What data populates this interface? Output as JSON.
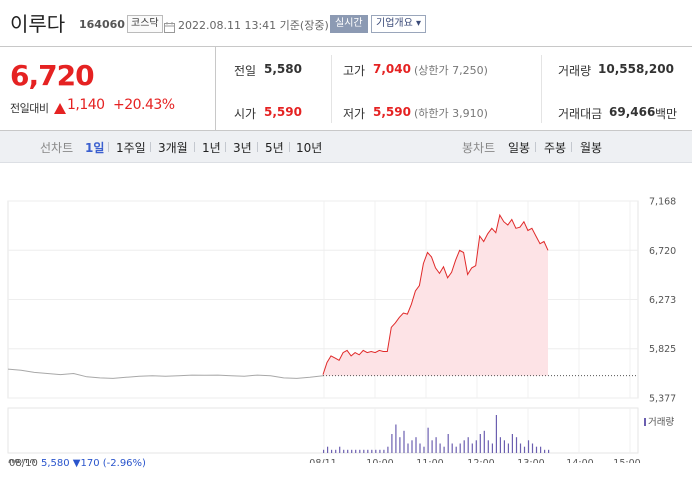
{
  "header": {
    "stock_name": "이루다",
    "stock_code": "164060",
    "market": "코스닥",
    "datetime": "2022.08.11 13:41 기준(장중)",
    "realtime_label": "실시간",
    "overview_label": "기업개요 ▾"
  },
  "price": {
    "current": "6,720",
    "change_label": "전일대비",
    "change_amount": "1,140",
    "change_rate": "+20.43%",
    "direction": "up",
    "up_color": "#e52222"
  },
  "stats": {
    "prev_close_label": "전일",
    "prev_close": "5,580",
    "high_label": "고가",
    "high": "7,040",
    "upper_limit": "(상한가 7,250)",
    "volume_label": "거래량",
    "volume": "10,558,200",
    "open_label": "시가",
    "open": "5,590",
    "low_label": "저가",
    "low": "5,590",
    "lower_limit": "(하한가 3,910)",
    "trade_value_label": "거래대금",
    "trade_value": "69,466",
    "trade_value_unit": "백만"
  },
  "toolbar": {
    "line_chart_label": "선차트",
    "periods": [
      "1일",
      "1주일",
      "3개월",
      "1년",
      "3년",
      "5년",
      "10년"
    ],
    "active_period": "1일",
    "candle_chart_label": "봉차트",
    "candle_periods": [
      "일봉",
      "주봉",
      "월봉"
    ]
  },
  "chart_data": {
    "type": "line",
    "y_ticks": [
      "7,168",
      "6,720",
      "6,273",
      "5,825",
      "5,377"
    ],
    "y_tick_values": [
      7168,
      6720,
      6273,
      5825,
      5377
    ],
    "ylim": [
      5377,
      7168
    ],
    "x_ticks": [
      "08/10",
      "08/11",
      "10:00",
      "11:00",
      "12:00",
      "13:00",
      "14:00",
      "15:00"
    ],
    "volume_label": "거래량",
    "reference_line": 5580,
    "series": [
      {
        "values_prev_day": [
          5640,
          5630,
          5610,
          5600,
          5590,
          5600,
          5570,
          5560,
          5555,
          5565,
          5575,
          5580,
          5575,
          5580,
          5585,
          5583,
          5585,
          5580,
          5575,
          5585,
          5580,
          5560,
          5555,
          5565,
          5580
        ],
        "values_today": [
          5590,
          5700,
          5760,
          5740,
          5720,
          5790,
          5810,
          5760,
          5790,
          5770,
          5810,
          5790,
          5800,
          5790,
          5810,
          5800,
          5800,
          6020,
          6060,
          6110,
          6150,
          6140,
          6230,
          6350,
          6400,
          6600,
          6700,
          6660,
          6560,
          6510,
          6570,
          6470,
          6520,
          6630,
          6720,
          6700,
          6500,
          6560,
          6580,
          6850,
          6800,
          6870,
          6920,
          6880,
          7040,
          6980,
          6950,
          7000,
          6920,
          6930,
          6980,
          6900,
          6920,
          6850,
          6780,
          6800,
          6720
        ]
      }
    ],
    "volume_bars_today": [
      1,
      2,
      1,
      1,
      2,
      1,
      1,
      1,
      1,
      1,
      1,
      1,
      1,
      1,
      1,
      1,
      2,
      6,
      9,
      5,
      7,
      3,
      4,
      5,
      3,
      2,
      8,
      4,
      5,
      3,
      2,
      6,
      3,
      2,
      3,
      4,
      5,
      3,
      4,
      6,
      7,
      4,
      3,
      12,
      5,
      4,
      3,
      6,
      5,
      3,
      2,
      4,
      3,
      2,
      2,
      1,
      1
    ],
    "line_color": "#e02a2a",
    "fill_color": "#fde3e6",
    "prev_line_color": "#a8a8a8",
    "volume_color": "#6b5fb0"
  },
  "footer": {
    "date": "08/10",
    "prev_text": "5,580 ▼170 (-2.96%)"
  }
}
